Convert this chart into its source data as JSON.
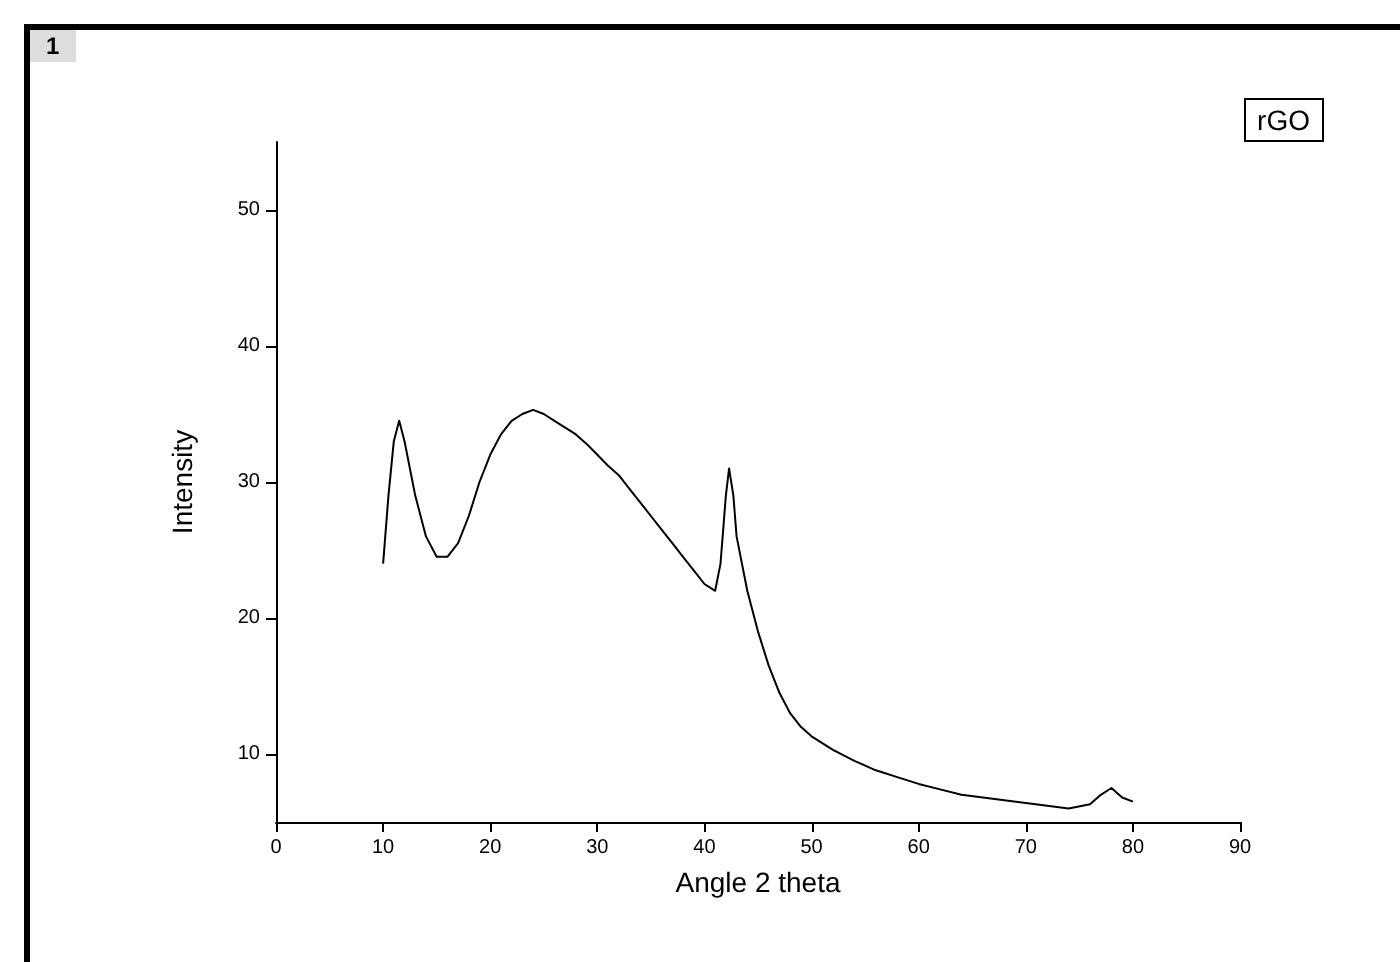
{
  "chart_data": {
    "type": "line",
    "xlabel": "Angle 2 theta",
    "ylabel": "Intensity",
    "annotations": [
      "1",
      "rGO"
    ],
    "xlim": [
      0,
      90
    ],
    "xticks": [
      0,
      10,
      20,
      30,
      40,
      50,
      60,
      70,
      80,
      90
    ],
    "ylim": [
      5,
      55
    ],
    "yticks": [
      10,
      20,
      30,
      40,
      50
    ],
    "grid": false,
    "marker": "none",
    "line_style": "solid",
    "series": [
      {
        "color": "#000000",
        "x": [
          10,
          10.5,
          11,
          11.5,
          12,
          13,
          14,
          15,
          16,
          17,
          18,
          19,
          20,
          21,
          22,
          23,
          24,
          25,
          26,
          27,
          28,
          29,
          30,
          31,
          32,
          33,
          34,
          35,
          36,
          37,
          38,
          39,
          40,
          41,
          41.5,
          42,
          42.3,
          42.7,
          43,
          44,
          45,
          46,
          47,
          48,
          49,
          50,
          52,
          54,
          56,
          58,
          60,
          62,
          64,
          66,
          68,
          70,
          72,
          74,
          76,
          77,
          78,
          79,
          80
        ],
        "values": [
          24,
          29,
          33,
          34.5,
          33,
          29,
          26,
          24.5,
          24.5,
          25.5,
          27.5,
          30,
          32,
          33.5,
          34.5,
          35,
          35.3,
          35,
          34.5,
          34,
          33.5,
          32.8,
          32,
          31.2,
          30.5,
          29.5,
          28.5,
          27.5,
          26.5,
          25.5,
          24.5,
          23.5,
          22.5,
          22,
          24,
          29,
          31,
          29,
          26,
          22,
          19,
          16.5,
          14.5,
          13,
          12,
          11.3,
          10.3,
          9.5,
          8.8,
          8.3,
          7.8,
          7.4,
          7,
          6.8,
          6.6,
          6.4,
          6.2,
          6,
          6.3,
          7,
          7.5,
          6.8,
          6.5
        ]
      }
    ]
  }
}
